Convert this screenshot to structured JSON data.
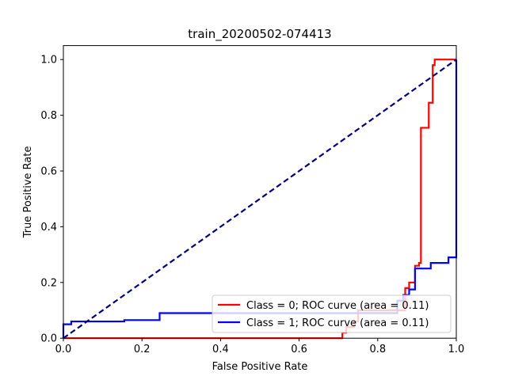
{
  "chart_data": {
    "type": "line",
    "title": "train_20200502-074413",
    "xlabel": "False Positive Rate",
    "ylabel": "True Positive Rate",
    "xlim": [
      0.0,
      1.0
    ],
    "ylim": [
      0.0,
      1.05
    ],
    "x_ticks": [
      "0.0",
      "0.2",
      "0.4",
      "0.6",
      "0.8",
      "1.0"
    ],
    "x_tick_values": [
      0.0,
      0.2,
      0.4,
      0.6,
      0.8,
      1.0
    ],
    "y_ticks": [
      "0.0",
      "0.2",
      "0.4",
      "0.6",
      "0.8",
      "1.0"
    ],
    "y_tick_values": [
      0.0,
      0.2,
      0.4,
      0.6,
      0.8,
      1.0
    ],
    "grid": false,
    "legend_position": "lower-right",
    "series": [
      {
        "name": "Class = 0; ROC curve (area =  0.11)",
        "color": "#ff0000",
        "style": "solid",
        "x": [
          0.0,
          0.71,
          0.71,
          0.72,
          0.72,
          0.74,
          0.74,
          0.75,
          0.75,
          0.87,
          0.87,
          0.88,
          0.88,
          0.895,
          0.895,
          0.905,
          0.905,
          0.91,
          0.91,
          0.93,
          0.93,
          0.94,
          0.94,
          0.945,
          0.945,
          1.0
        ],
        "y": [
          0.0,
          0.0,
          0.02,
          0.02,
          0.04,
          0.04,
          0.06,
          0.06,
          0.1,
          0.1,
          0.18,
          0.18,
          0.2,
          0.2,
          0.26,
          0.26,
          0.27,
          0.27,
          0.755,
          0.755,
          0.845,
          0.845,
          0.98,
          0.98,
          1.0,
          1.0
        ]
      },
      {
        "name": "Class = 1; ROC curve (area =  0.11)",
        "color": "#0000ff",
        "style": "solid",
        "x": [
          0.0,
          0.0,
          0.02,
          0.02,
          0.155,
          0.155,
          0.245,
          0.245,
          0.85,
          0.85,
          0.865,
          0.865,
          0.88,
          0.88,
          0.895,
          0.895,
          0.935,
          0.935,
          0.98,
          0.98,
          1.0,
          1.0
        ],
        "y": [
          0.0,
          0.05,
          0.05,
          0.06,
          0.06,
          0.065,
          0.065,
          0.09,
          0.09,
          0.135,
          0.135,
          0.155,
          0.155,
          0.175,
          0.175,
          0.25,
          0.25,
          0.27,
          0.27,
          0.29,
          0.29,
          1.0
        ]
      },
      {
        "name": "",
        "color": "#000080",
        "style": "dashed",
        "x": [
          0.0,
          1.0
        ],
        "y": [
          0.0,
          1.0
        ]
      }
    ]
  }
}
